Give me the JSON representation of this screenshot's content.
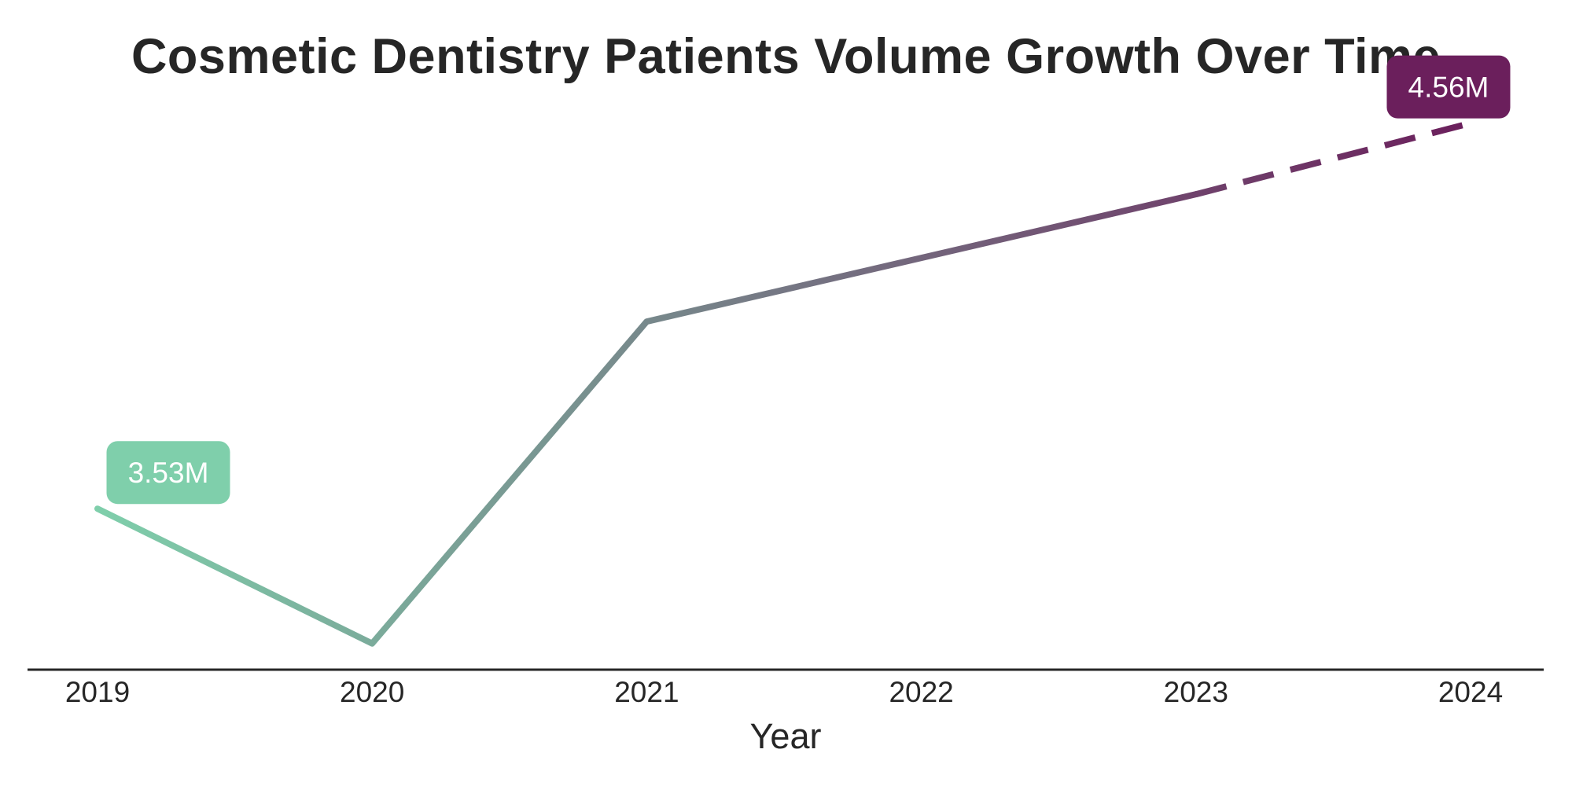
{
  "chart_data": {
    "type": "line",
    "title": "Cosmetic Dentistry Patients Volume Growth Over Time",
    "xlabel": "Year",
    "ylabel": "",
    "x": [
      "2019",
      "2020",
      "2021",
      "2022",
      "2023",
      "2024"
    ],
    "series": [
      {
        "values": [
          3.53,
          3.17,
          4.03,
          4.2,
          4.37,
          4.56
        ],
        "projected_from": "2023"
      }
    ],
    "ylim": [
      3.1,
      4.7
    ],
    "grid": false,
    "legend": "none",
    "annotations": [
      {
        "x": "2019",
        "label": "3.53M"
      },
      {
        "x": "2024",
        "label": "4.56M"
      }
    ],
    "colors": {
      "start": "#7fcfab",
      "end": "#6b1f5c",
      "axis": "#262626",
      "text": "#262626"
    }
  }
}
